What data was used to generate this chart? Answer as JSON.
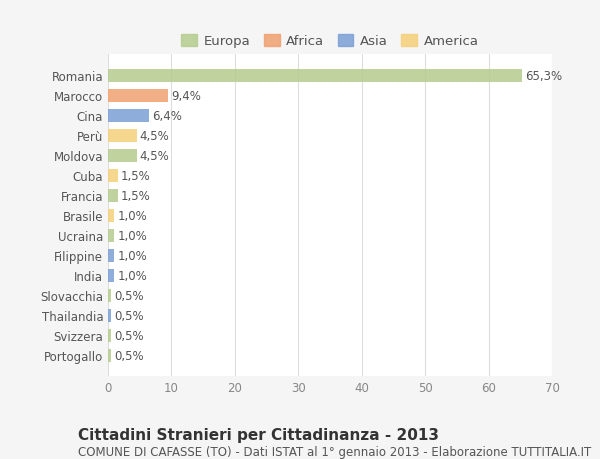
{
  "categories": [
    "Romania",
    "Marocco",
    "Cina",
    "Perù",
    "Moldova",
    "Cuba",
    "Francia",
    "Brasile",
    "Ucraina",
    "Filippine",
    "India",
    "Slovacchia",
    "Thailandia",
    "Svizzera",
    "Portogallo"
  ],
  "values": [
    65.3,
    9.4,
    6.4,
    4.5,
    4.5,
    1.5,
    1.5,
    1.0,
    1.0,
    1.0,
    1.0,
    0.5,
    0.5,
    0.5,
    0.5
  ],
  "labels": [
    "65,3%",
    "9,4%",
    "6,4%",
    "4,5%",
    "4,5%",
    "1,5%",
    "1,5%",
    "1,0%",
    "1,0%",
    "1,0%",
    "1,0%",
    "0,5%",
    "0,5%",
    "0,5%",
    "0,5%"
  ],
  "continents": [
    "Europa",
    "Africa",
    "Asia",
    "America",
    "Europa",
    "America",
    "Europa",
    "America",
    "Europa",
    "Asia",
    "Asia",
    "Europa",
    "Asia",
    "Europa",
    "Europa"
  ],
  "colors": {
    "Europa": "#b5cc8e",
    "Africa": "#f0a06e",
    "Asia": "#7b9fd4",
    "America": "#f5d07a"
  },
  "legend_colors": {
    "Europa": "#b5cc8e",
    "Africa": "#f0a06e",
    "Asia": "#7b9fd4",
    "America": "#f5d07a"
  },
  "xlim": [
    0,
    70
  ],
  "xticks": [
    0,
    10,
    20,
    30,
    40,
    50,
    60,
    70
  ],
  "background_color": "#f5f5f5",
  "plot_background": "#ffffff",
  "grid_color": "#dddddd",
  "title": "Cittadini Stranieri per Cittadinanza - 2013",
  "subtitle": "COMUNE DI CAFASSE (TO) - Dati ISTAT al 1° gennaio 2013 - Elaborazione TUTTITALIA.IT",
  "title_fontsize": 11,
  "subtitle_fontsize": 8.5,
  "bar_height": 0.65,
  "label_fontsize": 8.5,
  "tick_fontsize": 8.5,
  "legend_fontsize": 9.5
}
